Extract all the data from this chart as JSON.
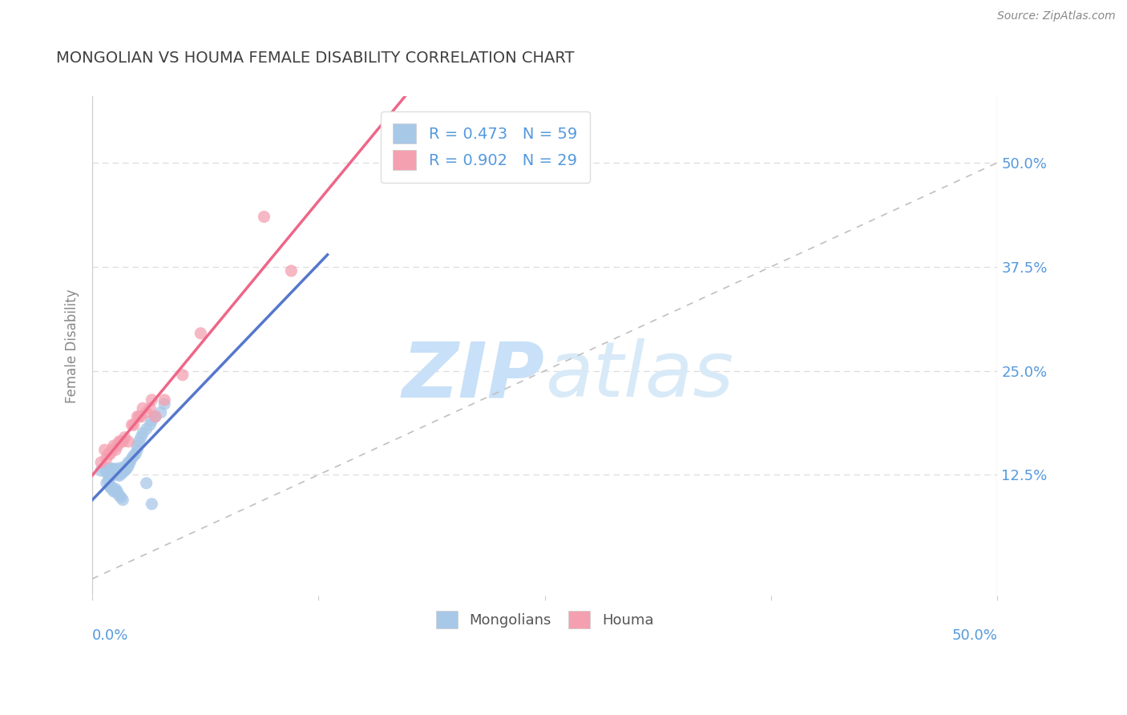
{
  "title": "MONGOLIAN VS HOUMA FEMALE DISABILITY CORRELATION CHART",
  "source": "Source: ZipAtlas.com",
  "ylabel": "Female Disability",
  "xlim": [
    0.0,
    0.5
  ],
  "ylim": [
    -0.02,
    0.58
  ],
  "legend_mongolian_r": "R = 0.473",
  "legend_mongolian_n": "N = 59",
  "legend_houma_r": "R = 0.902",
  "legend_houma_n": "N = 29",
  "mongolian_color": "#a8c8e8",
  "houma_color": "#f4a0b0",
  "mongolian_line_color": "#5577cc",
  "houma_line_color": "#ee6688",
  "watermark_color": "#daeeff",
  "background_color": "#ffffff",
  "title_color": "#404040",
  "axis_label_color": "#5599dd",
  "grid_color": "#dddddd",
  "mongolian_scatter": {
    "x": [
      0.005,
      0.007,
      0.008,
      0.009,
      0.01,
      0.01,
      0.01,
      0.01,
      0.011,
      0.011,
      0.012,
      0.012,
      0.012,
      0.013,
      0.013,
      0.013,
      0.014,
      0.014,
      0.015,
      0.015,
      0.015,
      0.016,
      0.016,
      0.017,
      0.018,
      0.018,
      0.019,
      0.02,
      0.02,
      0.021,
      0.022,
      0.023,
      0.024,
      0.025,
      0.025,
      0.026,
      0.027,
      0.028,
      0.03,
      0.032,
      0.033,
      0.035,
      0.038,
      0.04,
      0.008,
      0.009,
      0.01,
      0.01,
      0.011,
      0.011,
      0.012,
      0.013,
      0.013,
      0.014,
      0.015,
      0.016,
      0.017,
      0.03,
      0.033
    ],
    "y": [
      0.13,
      0.132,
      0.128,
      0.126,
      0.125,
      0.128,
      0.13,
      0.133,
      0.128,
      0.132,
      0.125,
      0.128,
      0.132,
      0.126,
      0.128,
      0.132,
      0.126,
      0.13,
      0.124,
      0.128,
      0.133,
      0.126,
      0.13,
      0.128,
      0.13,
      0.135,
      0.132,
      0.135,
      0.14,
      0.14,
      0.145,
      0.148,
      0.15,
      0.155,
      0.16,
      0.165,
      0.17,
      0.175,
      0.18,
      0.185,
      0.19,
      0.195,
      0.2,
      0.21,
      0.115,
      0.118,
      0.11,
      0.112,
      0.108,
      0.11,
      0.105,
      0.105,
      0.108,
      0.105,
      0.1,
      0.098,
      0.095,
      0.115,
      0.09
    ]
  },
  "houma_scatter": {
    "x": [
      0.005,
      0.007,
      0.008,
      0.009,
      0.01,
      0.011,
      0.012,
      0.013,
      0.014,
      0.015,
      0.016,
      0.017,
      0.018,
      0.02,
      0.022,
      0.023,
      0.025,
      0.026,
      0.027,
      0.028,
      0.03,
      0.032,
      0.033,
      0.035,
      0.04,
      0.05,
      0.06,
      0.095,
      0.11
    ],
    "y": [
      0.14,
      0.155,
      0.145,
      0.15,
      0.15,
      0.155,
      0.16,
      0.155,
      0.16,
      0.165,
      0.165,
      0.165,
      0.17,
      0.165,
      0.185,
      0.185,
      0.195,
      0.195,
      0.195,
      0.205,
      0.2,
      0.205,
      0.215,
      0.195,
      0.215,
      0.245,
      0.295,
      0.435,
      0.37
    ]
  },
  "ytick_vals": [
    0.0,
    0.125,
    0.25,
    0.375,
    0.5
  ],
  "ytick_labels": [
    "",
    "12.5%",
    "25.0%",
    "37.5%",
    "50.0%"
  ]
}
